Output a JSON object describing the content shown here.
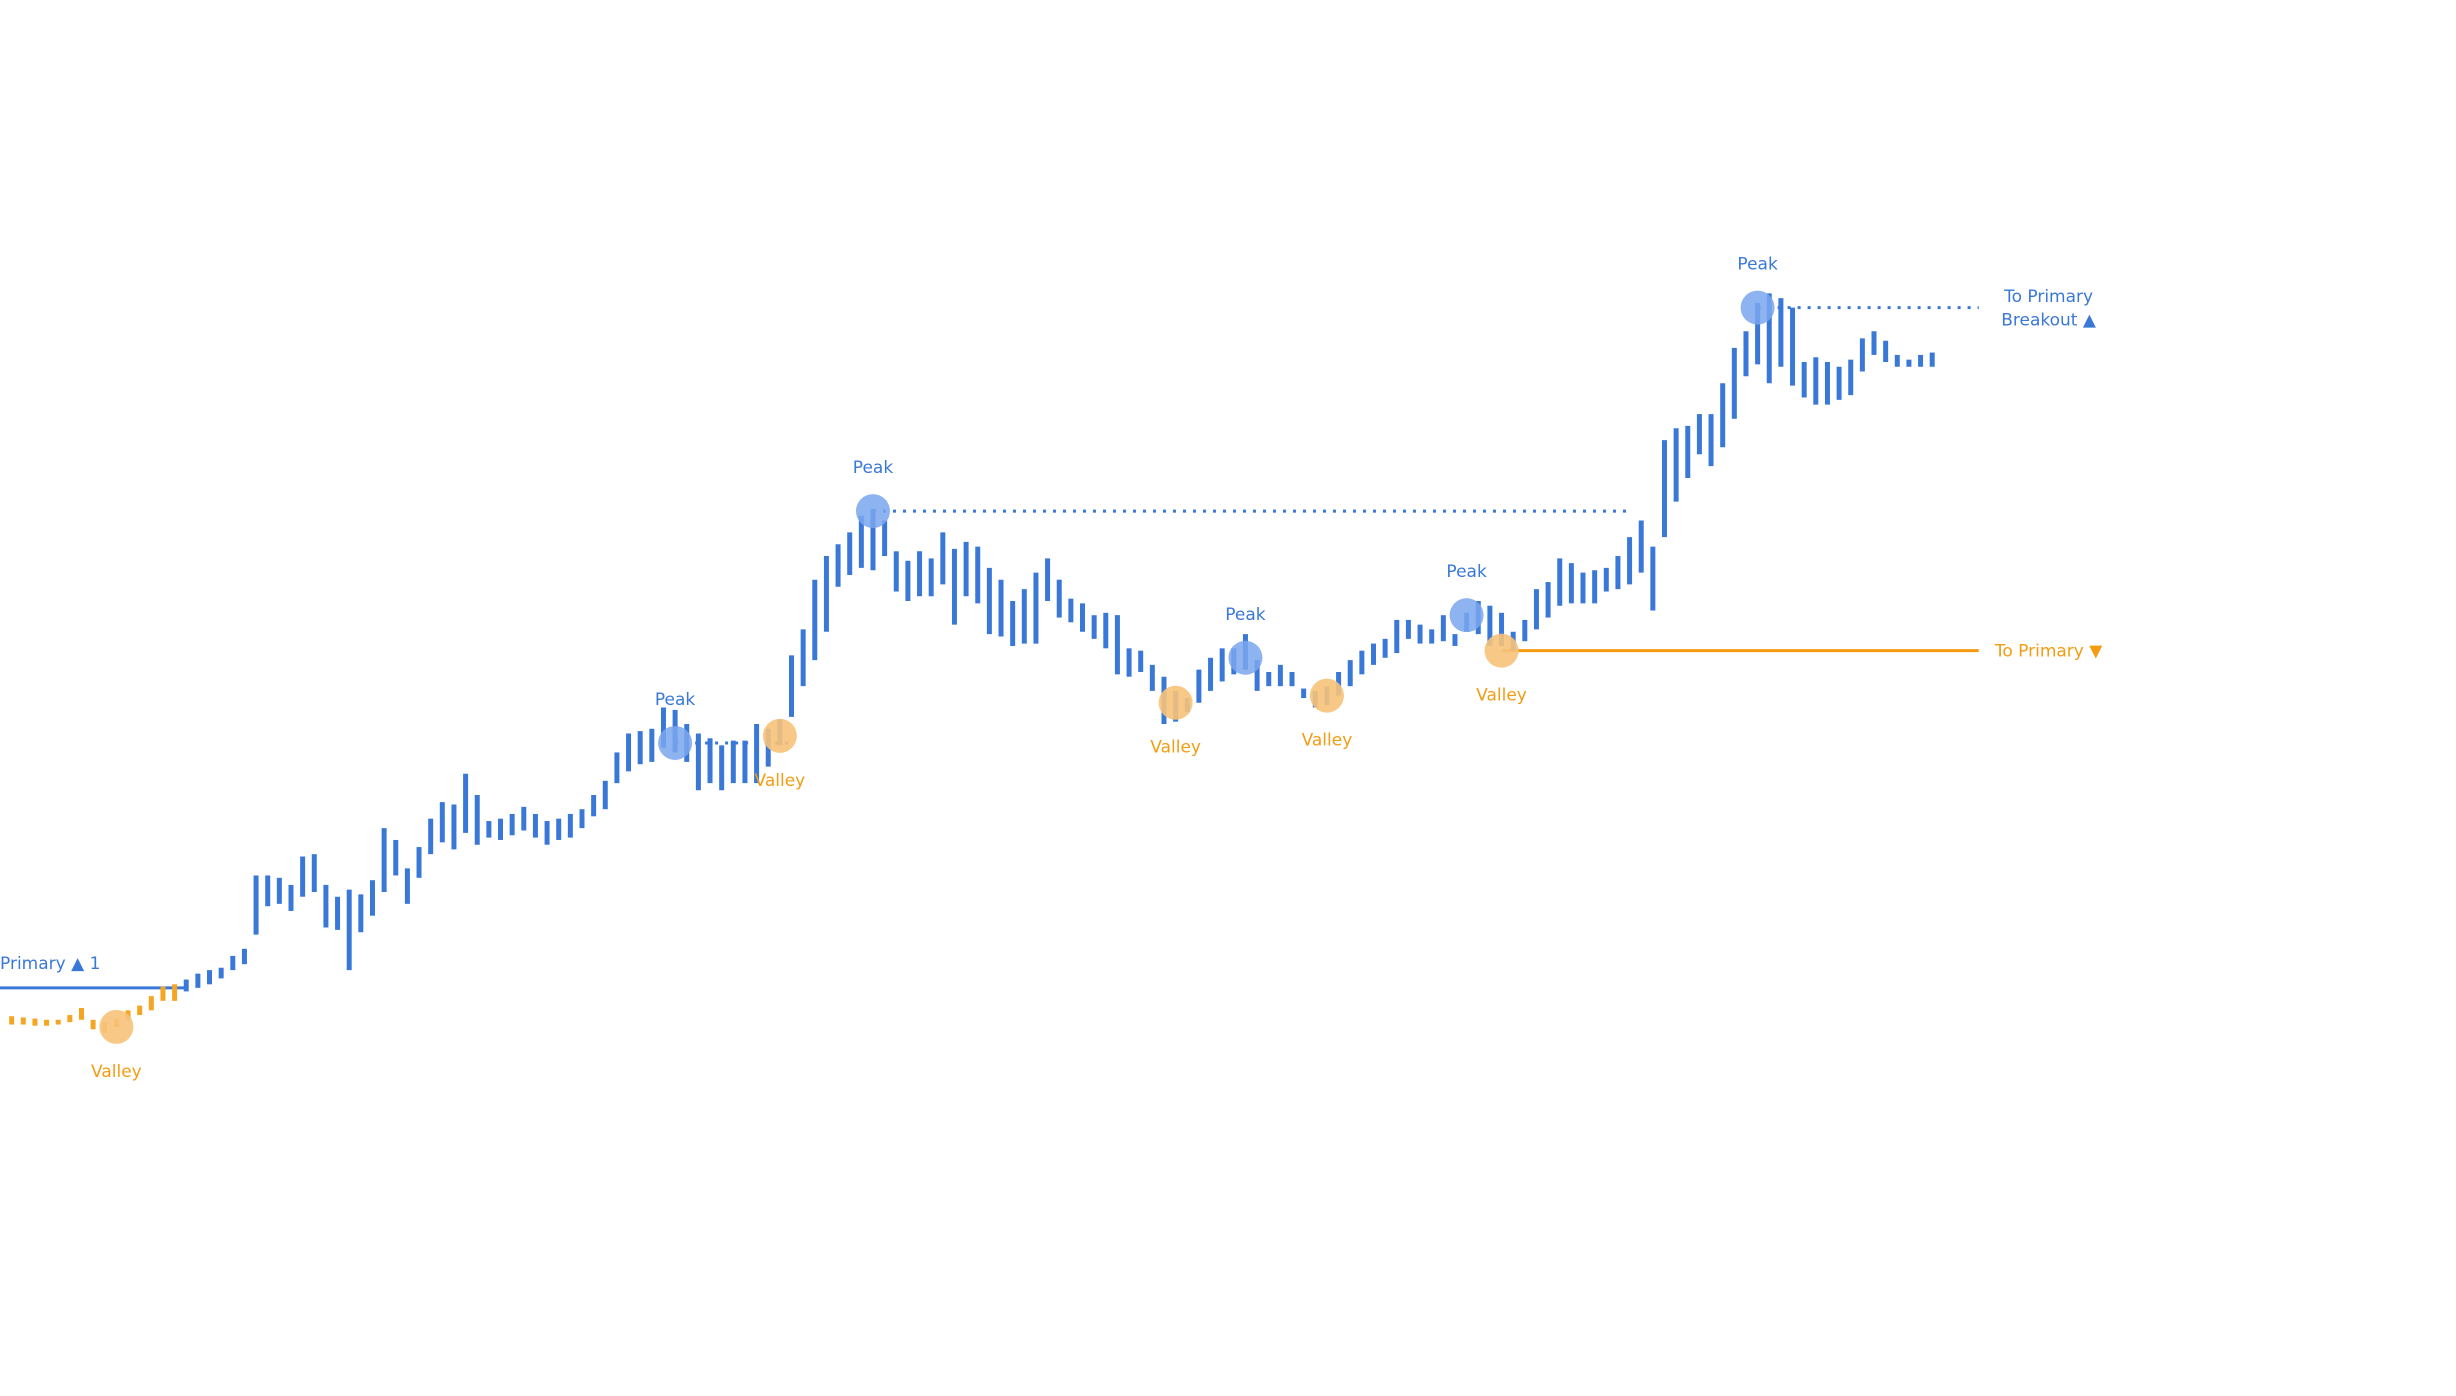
{
  "colors": {
    "bar_blue": "#3a78d8",
    "bar_orange": "#f5a524",
    "peak_fill": "#7aa6ee",
    "valley_fill": "#f7c27a",
    "primary_line": "#3a78d8",
    "to_primary_line": "#f39c12"
  },
  "chart_data": {
    "type": "bar",
    "series": [
      {
        "bars": [
          [
            0,
            -79,
            -86,
            "o"
          ],
          [
            1,
            -80,
            -86,
            "o"
          ],
          [
            2,
            -81,
            -87,
            "o"
          ],
          [
            3,
            -82,
            -87,
            "o"
          ],
          [
            4,
            -82,
            -86,
            "o"
          ],
          [
            5,
            -78,
            -84,
            "o"
          ],
          [
            6,
            -72,
            -82,
            "o"
          ],
          [
            7,
            -82,
            -90,
            "o"
          ],
          [
            8,
            -84,
            -93,
            "o"
          ],
          [
            9,
            -81,
            -88,
            "o"
          ],
          [
            10,
            -74,
            -82,
            "o"
          ],
          [
            11,
            -70,
            -78,
            "o"
          ],
          [
            12,
            -62,
            -74,
            "o"
          ],
          [
            13,
            -54,
            -66,
            "o"
          ],
          [
            14,
            -52,
            -66,
            "o"
          ],
          [
            15,
            -48,
            -58,
            "b"
          ],
          [
            16,
            -43,
            -55,
            "b"
          ],
          [
            17,
            -40,
            -52,
            "b"
          ],
          [
            18,
            -38,
            -47,
            "b"
          ],
          [
            19,
            -28,
            -40,
            "b"
          ],
          [
            20,
            -22,
            -35,
            "b"
          ],
          [
            21,
            40,
            -10,
            "b"
          ],
          [
            22,
            40,
            14,
            "b"
          ],
          [
            23,
            38,
            16,
            "b"
          ],
          [
            24,
            32,
            10,
            "b"
          ],
          [
            25,
            56,
            22,
            "b"
          ],
          [
            26,
            58,
            26,
            "b"
          ],
          [
            27,
            32,
            -4,
            "b"
          ],
          [
            28,
            22,
            -6,
            "b"
          ],
          [
            29,
            28,
            -40,
            "b"
          ],
          [
            30,
            24,
            -8,
            "b"
          ],
          [
            31,
            36,
            6,
            "b"
          ],
          [
            32,
            80,
            26,
            "b"
          ],
          [
            33,
            70,
            40,
            "b"
          ],
          [
            34,
            46,
            16,
            "b"
          ],
          [
            35,
            64,
            38,
            "b"
          ],
          [
            36,
            88,
            58,
            "b"
          ],
          [
            37,
            102,
            68,
            "b"
          ],
          [
            38,
            100,
            62,
            "b"
          ],
          [
            39,
            126,
            76,
            "b"
          ],
          [
            40,
            108,
            66,
            "b"
          ],
          [
            41,
            86,
            72,
            "b"
          ],
          [
            42,
            88,
            70,
            "b"
          ],
          [
            43,
            92,
            74,
            "b"
          ],
          [
            44,
            98,
            78,
            "b"
          ],
          [
            45,
            92,
            72,
            "b"
          ],
          [
            46,
            86,
            66,
            "b"
          ],
          [
            47,
            88,
            70,
            "b"
          ],
          [
            48,
            92,
            72,
            "b"
          ],
          [
            49,
            96,
            80,
            "b"
          ],
          [
            50,
            108,
            90,
            "b"
          ],
          [
            51,
            120,
            96,
            "b"
          ],
          [
            52,
            144,
            118,
            "b"
          ],
          [
            53,
            160,
            128,
            "b"
          ],
          [
            54,
            162,
            134,
            "b"
          ],
          [
            55,
            164,
            136,
            "b"
          ],
          [
            56,
            182,
            148,
            "b"
          ],
          [
            57,
            180,
            144,
            "b"
          ],
          [
            58,
            168,
            136,
            "b"
          ],
          [
            59,
            160,
            112,
            "b"
          ],
          [
            60,
            156,
            118,
            "b"
          ],
          [
            61,
            150,
            112,
            "b"
          ],
          [
            62,
            154,
            118,
            "b"
          ],
          [
            63,
            154,
            118,
            "b"
          ],
          [
            64,
            168,
            118,
            "b"
          ],
          [
            65,
            164,
            132,
            "b"
          ],
          [
            66,
            172,
            150,
            "b"
          ],
          [
            67,
            226,
            174,
            "b"
          ],
          [
            68,
            248,
            200,
            "b"
          ],
          [
            69,
            290,
            222,
            "b"
          ],
          [
            70,
            310,
            246,
            "b"
          ],
          [
            71,
            320,
            284,
            "b"
          ],
          [
            72,
            330,
            294,
            "b"
          ],
          [
            73,
            344,
            300,
            "b"
          ],
          [
            74,
            350,
            298,
            "b"
          ],
          [
            75,
            340,
            310,
            "b"
          ],
          [
            76,
            314,
            280,
            "b"
          ],
          [
            77,
            306,
            272,
            "b"
          ],
          [
            78,
            314,
            276,
            "b"
          ],
          [
            79,
            308,
            276,
            "b"
          ],
          [
            80,
            330,
            286,
            "b"
          ],
          [
            81,
            316,
            252,
            "b"
          ],
          [
            82,
            322,
            276,
            "b"
          ],
          [
            83,
            318,
            270,
            "b"
          ],
          [
            84,
            300,
            244,
            "b"
          ],
          [
            85,
            290,
            242,
            "b"
          ],
          [
            86,
            272,
            234,
            "b"
          ],
          [
            87,
            282,
            236,
            "b"
          ],
          [
            88,
            296,
            236,
            "b"
          ],
          [
            89,
            308,
            272,
            "b"
          ],
          [
            90,
            290,
            258,
            "b"
          ],
          [
            91,
            274,
            254,
            "b"
          ],
          [
            92,
            270,
            246,
            "b"
          ],
          [
            93,
            260,
            240,
            "b"
          ],
          [
            94,
            262,
            232,
            "b"
          ],
          [
            95,
            260,
            210,
            "b"
          ],
          [
            96,
            232,
            208,
            "b"
          ],
          [
            97,
            230,
            212,
            "b"
          ],
          [
            98,
            218,
            196,
            "b"
          ],
          [
            99,
            208,
            168,
            "b"
          ],
          [
            100,
            196,
            170,
            "b"
          ],
          [
            101,
            190,
            178,
            "b"
          ],
          [
            102,
            214,
            186,
            "b"
          ],
          [
            103,
            224,
            196,
            "b"
          ],
          [
            104,
            232,
            204,
            "b"
          ],
          [
            105,
            232,
            210,
            "b"
          ],
          [
            106,
            244,
            214,
            "b"
          ],
          [
            107,
            222,
            196,
            "b"
          ],
          [
            108,
            212,
            200,
            "b"
          ],
          [
            109,
            218,
            200,
            "b"
          ],
          [
            110,
            212,
            200,
            "b"
          ],
          [
            111,
            198,
            190,
            "b"
          ],
          [
            112,
            196,
            182,
            "b"
          ],
          [
            113,
            200,
            184,
            "b"
          ],
          [
            114,
            212,
            192,
            "b"
          ],
          [
            115,
            222,
            200,
            "b"
          ],
          [
            116,
            230,
            210,
            "b"
          ],
          [
            117,
            236,
            218,
            "b"
          ],
          [
            118,
            240,
            224,
            "b"
          ],
          [
            119,
            256,
            228,
            "b"
          ],
          [
            120,
            256,
            240,
            "b"
          ],
          [
            121,
            252,
            236,
            "b"
          ],
          [
            122,
            248,
            236,
            "b"
          ],
          [
            123,
            260,
            238,
            "b"
          ],
          [
            124,
            244,
            234,
            "b"
          ],
          [
            125,
            262,
            246,
            "b"
          ],
          [
            126,
            272,
            244,
            "b"
          ],
          [
            127,
            268,
            234,
            "b"
          ],
          [
            128,
            262,
            234,
            "b"
          ],
          [
            129,
            246,
            230,
            "b"
          ],
          [
            130,
            256,
            238,
            "b"
          ],
          [
            131,
            282,
            248,
            "b"
          ],
          [
            132,
            288,
            258,
            "b"
          ],
          [
            133,
            308,
            268,
            "b"
          ],
          [
            134,
            304,
            270,
            "b"
          ],
          [
            135,
            296,
            270,
            "b"
          ],
          [
            136,
            298,
            270,
            "b"
          ],
          [
            137,
            300,
            280,
            "b"
          ],
          [
            138,
            310,
            282,
            "b"
          ],
          [
            139,
            326,
            286,
            "b"
          ],
          [
            140,
            340,
            296,
            "b"
          ],
          [
            141,
            318,
            264,
            "b"
          ],
          [
            142,
            408,
            326,
            "b"
          ],
          [
            143,
            418,
            356,
            "b"
          ],
          [
            144,
            420,
            376,
            "b"
          ],
          [
            145,
            430,
            396,
            "b"
          ],
          [
            146,
            430,
            386,
            "b"
          ],
          [
            147,
            456,
            402,
            "b"
          ],
          [
            148,
            486,
            426,
            "b"
          ],
          [
            149,
            500,
            462,
            "b"
          ],
          [
            150,
            524,
            472,
            "b"
          ],
          [
            151,
            532,
            456,
            "b"
          ],
          [
            152,
            528,
            470,
            "b"
          ],
          [
            153,
            520,
            454,
            "b"
          ],
          [
            154,
            474,
            444,
            "b"
          ],
          [
            155,
            478,
            438,
            "b"
          ],
          [
            156,
            474,
            438,
            "b"
          ],
          [
            157,
            470,
            442,
            "b"
          ],
          [
            158,
            476,
            446,
            "b"
          ],
          [
            159,
            494,
            466,
            "b"
          ],
          [
            160,
            500,
            480,
            "b"
          ],
          [
            161,
            492,
            474,
            "b"
          ],
          [
            162,
            480,
            470,
            "b"
          ],
          [
            163,
            476,
            470,
            "b"
          ],
          [
            164,
            480,
            470,
            "b"
          ],
          [
            165,
            482,
            470,
            "b"
          ]
        ]
      }
    ],
    "peaks": [
      {
        "x": 57,
        "y": 152,
        "label": "Peak"
      },
      {
        "x": 74,
        "y": 348,
        "label": "Peak"
      },
      {
        "x": 106,
        "y": 224,
        "label": "Peak"
      },
      {
        "x": 125,
        "y": 260,
        "label": "Peak"
      },
      {
        "x": 150,
        "y": 520,
        "label": "Peak"
      }
    ],
    "valleys": [
      {
        "x": 9,
        "y": -88,
        "label": "Valley"
      },
      {
        "x": 66,
        "y": 158,
        "label": "Valley"
      },
      {
        "x": 100,
        "y": 186,
        "label": "Valley"
      },
      {
        "x": 113,
        "y": 192,
        "label": "Valley"
      },
      {
        "x": 128,
        "y": 230,
        "label": "Valley"
      }
    ],
    "levels": [
      {
        "name": "Primary",
        "y": -55,
        "x_from": -1,
        "x_to": 15,
        "style": "solid",
        "color": "blue"
      },
      {
        "name": "peak-1",
        "y": 152,
        "x_from": 57,
        "x_to": 67,
        "style": "dotted",
        "color": "blue"
      },
      {
        "name": "peak-2",
        "y": 348,
        "x_from": 74,
        "x_to": 139,
        "style": "dotted",
        "color": "blue"
      },
      {
        "name": "peak-3",
        "y": 520,
        "x_from": 150,
        "x_to": 169,
        "style": "dotted",
        "color": "blue"
      },
      {
        "name": "to-primary",
        "y": 230,
        "x_from": 128,
        "x_to": 169,
        "style": "solid",
        "color": "orange"
      }
    ],
    "annotations": [
      {
        "text": "Primary ▲ 1",
        "x": -1,
        "y": -34,
        "anchor": "start",
        "color": "blue"
      },
      {
        "text": "To Primary",
        "x": 175,
        "y": 530,
        "anchor": "middle",
        "color": "blue"
      },
      {
        "text": "Breakout ▲",
        "x": 175,
        "y": 510,
        "anchor": "middle",
        "color": "blue"
      },
      {
        "text": "To Primary ▼",
        "x": 175,
        "y": 230,
        "anchor": "middle",
        "color": "orange"
      }
    ],
    "xlim": [
      -1,
      210
    ],
    "ylim": [
      -400,
      780
    ],
    "grid": false,
    "legend": false
  }
}
